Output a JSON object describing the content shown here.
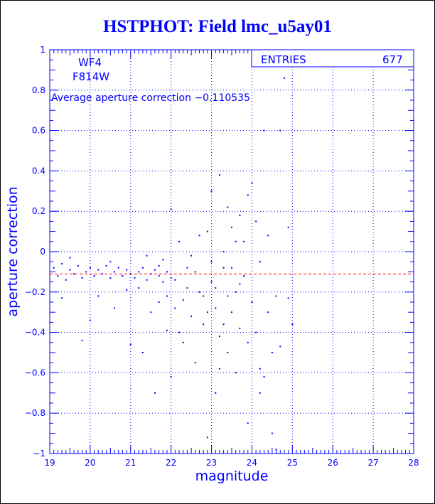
{
  "title": "HSTPHOT: Field lmc_u5ay01",
  "colors": {
    "primary": "#0000ff",
    "average_line": "#ff0000",
    "background": "#ffffff"
  },
  "stats_box": {
    "label": "ENTRIES",
    "value": "677"
  },
  "annotations": {
    "chip": "WF4",
    "filter": "F814W",
    "average_text": "Average aperture correction −0.110535"
  },
  "chart_data": {
    "type": "scatter",
    "title": "HSTPHOT: Field lmc_u5ay01",
    "xlabel": "magnitude",
    "ylabel": "aperture correction",
    "xlim": [
      19,
      28
    ],
    "ylim": [
      -1,
      1
    ],
    "grid": true,
    "x_ticks": [
      "19",
      "20",
      "21",
      "22",
      "23",
      "24",
      "25",
      "26",
      "27",
      "28"
    ],
    "y_ticks": [
      "1",
      "0.8",
      "0.6",
      "0.4",
      "0.2",
      "0",
      "−0.2",
      "−0.4",
      "−0.6",
      "−0.8",
      "−1"
    ],
    "average_line": -0.110535,
    "entries": 677,
    "points": [
      [
        19.1,
        -0.08
      ],
      [
        19.2,
        -0.12
      ],
      [
        19.3,
        -0.06
      ],
      [
        19.4,
        -0.14
      ],
      [
        19.5,
        -0.09
      ],
      [
        19.6,
        -0.11
      ],
      [
        19.7,
        -0.07
      ],
      [
        19.8,
        -0.13
      ],
      [
        19.9,
        -0.1
      ],
      [
        20.0,
        -0.08
      ],
      [
        20.1,
        -0.12
      ],
      [
        20.2,
        -0.09
      ],
      [
        20.3,
        -0.11
      ],
      [
        20.4,
        -0.07
      ],
      [
        20.5,
        -0.13
      ],
      [
        20.6,
        -0.1
      ],
      [
        20.7,
        -0.08
      ],
      [
        20.8,
        -0.12
      ],
      [
        20.9,
        -0.09
      ],
      [
        21.0,
        -0.11
      ],
      [
        21.1,
        -0.13
      ],
      [
        21.2,
        -0.1
      ],
      [
        21.3,
        -0.08
      ],
      [
        21.4,
        -0.14
      ],
      [
        21.5,
        -0.11
      ],
      [
        21.6,
        -0.09
      ],
      [
        21.7,
        -0.12
      ],
      [
        21.8,
        -0.15
      ],
      [
        21.9,
        -0.1
      ],
      [
        22.0,
        -0.13
      ],
      [
        19.3,
        -0.23
      ],
      [
        19.5,
        -0.03
      ],
      [
        19.8,
        -0.44
      ],
      [
        20.0,
        -0.34
      ],
      [
        20.2,
        -0.22
      ],
      [
        20.5,
        -0.05
      ],
      [
        20.6,
        -0.28
      ],
      [
        20.9,
        -0.19
      ],
      [
        21.0,
        -0.46
      ],
      [
        21.2,
        -0.18
      ],
      [
        21.3,
        -0.5
      ],
      [
        21.5,
        -0.3
      ],
      [
        21.6,
        -0.7
      ],
      [
        21.7,
        -0.25
      ],
      [
        21.8,
        -0.04
      ],
      [
        21.9,
        -0.39
      ],
      [
        22.0,
        0.21
      ],
      [
        22.0,
        -0.62
      ],
      [
        22.1,
        -0.28
      ],
      [
        22.2,
        0.05
      ],
      [
        22.3,
        -0.45
      ],
      [
        22.4,
        -0.18
      ],
      [
        22.5,
        -0.32
      ],
      [
        22.5,
        -0.02
      ],
      [
        22.6,
        -0.55
      ],
      [
        22.7,
        0.08
      ],
      [
        22.8,
        -0.22
      ],
      [
        22.8,
        -0.36
      ],
      [
        22.9,
        -0.92
      ],
      [
        22.9,
        0.1
      ],
      [
        23.0,
        -0.15
      ],
      [
        23.0,
        0.3
      ],
      [
        23.1,
        -0.28
      ],
      [
        23.1,
        -0.7
      ],
      [
        23.2,
        0.38
      ],
      [
        23.2,
        -0.42
      ],
      [
        23.3,
        -0.08
      ],
      [
        23.3,
        0.0
      ],
      [
        23.4,
        0.22
      ],
      [
        23.4,
        -0.5
      ],
      [
        23.5,
        -0.3
      ],
      [
        23.5,
        0.12
      ],
      [
        23.6,
        -0.2
      ],
      [
        23.6,
        -0.6
      ],
      [
        23.7,
        0.18
      ],
      [
        23.7,
        -0.38
      ],
      [
        23.8,
        0.05
      ],
      [
        23.8,
        -0.12
      ],
      [
        23.9,
        0.28
      ],
      [
        23.9,
        -0.45
      ],
      [
        24.0,
        0.34
      ],
      [
        24.0,
        -0.25
      ],
      [
        24.1,
        0.15
      ],
      [
        24.1,
        -0.4
      ],
      [
        24.2,
        -0.05
      ],
      [
        24.2,
        -0.58
      ],
      [
        24.3,
        0.6
      ],
      [
        24.4,
        0.08
      ],
      [
        24.4,
        -0.3
      ],
      [
        24.5,
        -0.5
      ],
      [
        24.6,
        -0.22
      ],
      [
        24.7,
        0.6
      ],
      [
        24.7,
        -0.47
      ],
      [
        24.8,
        0.86
      ],
      [
        24.9,
        0.12
      ],
      [
        24.9,
        -0.23
      ],
      [
        25.0,
        -0.36
      ],
      [
        24.6,
        -0.98
      ],
      [
        24.5,
        -0.9
      ],
      [
        24.3,
        -0.62
      ],
      [
        24.2,
        -0.7
      ],
      [
        23.9,
        -0.85
      ],
      [
        23.7,
        -0.16
      ],
      [
        23.6,
        0.05
      ],
      [
        23.5,
        -0.08
      ],
      [
        23.4,
        -0.22
      ],
      [
        23.3,
        -0.36
      ],
      [
        23.2,
        -0.58
      ],
      [
        23.1,
        -0.18
      ],
      [
        23.0,
        -0.05
      ],
      [
        22.9,
        -0.3
      ],
      [
        22.7,
        -0.2
      ],
      [
        22.6,
        -0.1
      ],
      [
        22.4,
        -0.08
      ],
      [
        22.3,
        -0.24
      ],
      [
        22.2,
        -0.4
      ],
      [
        22.1,
        -0.14
      ],
      [
        21.9,
        -0.22
      ],
      [
        21.7,
        -0.07
      ],
      [
        21.4,
        -0.02
      ]
    ]
  }
}
